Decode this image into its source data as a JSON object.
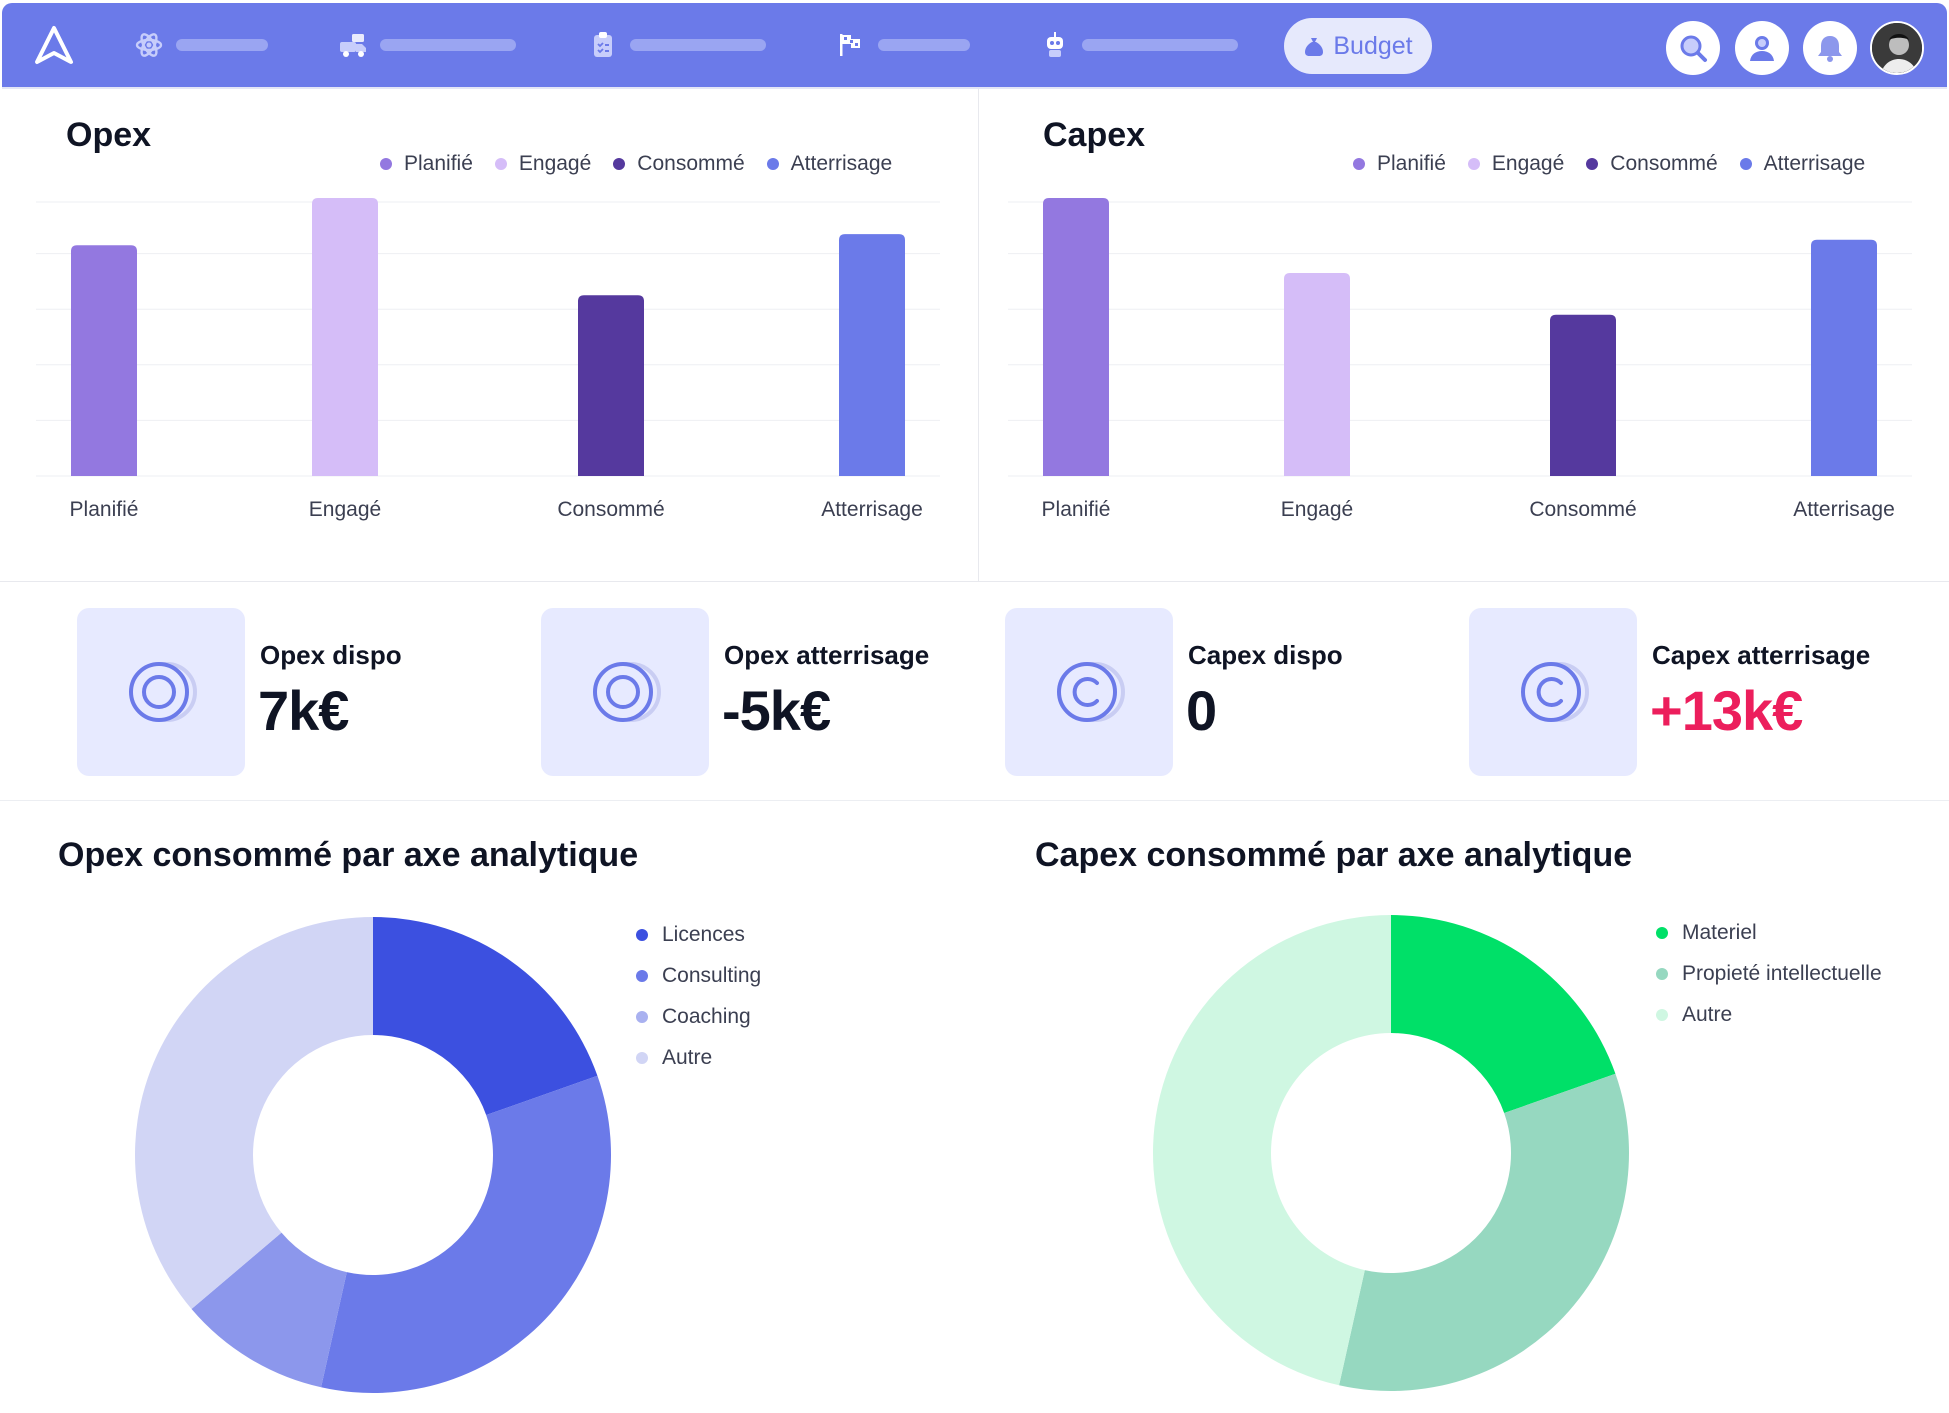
{
  "topbar": {
    "active_tab": "Budget",
    "nav_icons": [
      "atom-icon",
      "truck-icon",
      "clipboard-icon",
      "flags-icon",
      "robot-icon"
    ],
    "actions": [
      "search-icon",
      "user-icon",
      "bell-icon"
    ],
    "accent": "#6b7ae9"
  },
  "opex_panel": {
    "title": "Opex",
    "legend": [
      "Planifié",
      "Engagé",
      "Consommé",
      "Atterrisage"
    ]
  },
  "capex_panel": {
    "title": "Capex",
    "legend": [
      "Planifié",
      "Engagé",
      "Consommé",
      "Atterrisage"
    ]
  },
  "kpis": [
    {
      "label": "Opex dispo",
      "value": "7k€",
      "icon": "opex-circle-icon"
    },
    {
      "label": "Opex atterrisage",
      "value": "-5k€",
      "icon": "opex-circle-icon"
    },
    {
      "label": "Capex dispo",
      "value": "0",
      "icon": "capex-copyright-icon"
    },
    {
      "label": "Capex atterrisage",
      "value": "+13k€",
      "icon": "capex-copyright-icon",
      "color": "#ec1e5c"
    }
  ],
  "opex_donut": {
    "title": "Opex consommé par axe analytique",
    "legend": [
      "Licences",
      "Consulting",
      "Coaching",
      "Autre"
    ]
  },
  "capex_donut": {
    "title": "Capex consommé par axe analytique",
    "legend": [
      "Materiel",
      "Propieté intellectuelle",
      "Autre"
    ]
  },
  "chart_data": [
    {
      "type": "bar",
      "title": "Opex",
      "categories": [
        "Planifié",
        "Engagé",
        "Consommé",
        "Atterrisage"
      ],
      "values": [
        83,
        100,
        65,
        87
      ],
      "colors": [
        "#9378e0",
        "#d5bdf8",
        "#55399e",
        "#6b7ae9"
      ],
      "grid": true
    },
    {
      "type": "bar",
      "title": "Capex",
      "categories": [
        "Planifié",
        "Engagé",
        "Consommé",
        "Atterrisage"
      ],
      "values": [
        100,
        73,
        58,
        85
      ],
      "colors": [
        "#9378e0",
        "#d5bdf8",
        "#55399e",
        "#6b7ae9"
      ],
      "grid": true
    },
    {
      "type": "pie",
      "title": "Opex consommé par axe analytique",
      "categories": [
        "Licences",
        "Consulting",
        "Coaching",
        "Autre"
      ],
      "values": [
        19.6,
        33.9,
        10.3,
        36.2
      ],
      "colors": [
        "#3c50e0",
        "#6b7ae9",
        "#8c97ec",
        "#d1d5f5"
      ]
    },
    {
      "type": "pie",
      "title": "Capex consommé par axe analytique",
      "categories": [
        "Materiel",
        "Propieté intellectuelle",
        "Autre"
      ],
      "values": [
        19.6,
        33.9,
        46.5
      ],
      "colors": [
        "#00e068",
        "#96d8c0",
        "#cff7e2"
      ]
    }
  ]
}
